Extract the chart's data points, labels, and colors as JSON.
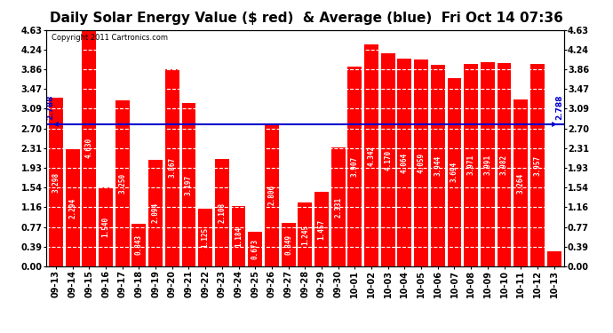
{
  "title": "Daily Solar Energy Value ($ red)  & Average (blue)  Fri Oct 14 07:36",
  "copyright": "Copyright 2011 Cartronics.com",
  "average": 2.788,
  "categories": [
    "09-13",
    "09-14",
    "09-15",
    "09-16",
    "09-17",
    "09-18",
    "09-19",
    "09-20",
    "09-21",
    "09-22",
    "09-23",
    "09-24",
    "09-25",
    "09-26",
    "09-27",
    "09-28",
    "09-29",
    "09-30",
    "10-01",
    "10-02",
    "10-03",
    "10-04",
    "10-05",
    "10-06",
    "10-07",
    "10-08",
    "10-09",
    "10-10",
    "10-11",
    "10-12",
    "10-13"
  ],
  "values": [
    3.298,
    2.294,
    4.63,
    1.54,
    3.25,
    0.843,
    2.094,
    3.867,
    3.197,
    1.125,
    2.108,
    1.184,
    0.673,
    2.806,
    0.849,
    1.245,
    1.457,
    2.331,
    3.907,
    4.342,
    4.17,
    4.064,
    4.059,
    3.944,
    3.694,
    3.971,
    3.991,
    3.982,
    3.264,
    3.957,
    0.288
  ],
  "bar_color": "#ff0000",
  "avg_line_color": "#0000cc",
  "background_color": "#ffffff",
  "ylim_max": 4.63,
  "yticks": [
    0.0,
    0.39,
    0.77,
    1.16,
    1.54,
    1.93,
    2.31,
    2.7,
    3.09,
    3.47,
    3.86,
    4.24,
    4.63
  ],
  "title_fontsize": 11,
  "tick_fontsize": 7,
  "bar_label_fontsize": 5.5,
  "avg_label": "2.788",
  "avg_label_color": "#0000cc",
  "grid_color": "white",
  "grid_linestyle": "--"
}
